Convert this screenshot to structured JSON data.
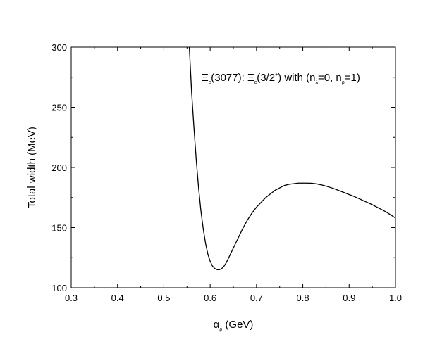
{
  "chart_data": {
    "type": "line",
    "title": "",
    "xlabel": {
      "symbol": "α",
      "subscript": "ρ",
      "unit": " (GeV)"
    },
    "ylabel": "Total width (MeV)",
    "xlim": [
      0.3,
      1.0
    ],
    "ylim": [
      100,
      300
    ],
    "grid": false,
    "x_ticks": [
      0.3,
      0.4,
      0.5,
      0.6,
      0.7,
      0.8,
      0.9,
      1.0
    ],
    "x_tick_labels": [
      "0.3",
      "0.4",
      "0.5",
      "0.6",
      "0.7",
      "0.8",
      "0.9",
      "1.0"
    ],
    "y_ticks": [
      100,
      150,
      200,
      250,
      300
    ],
    "y_tick_labels": [
      "100",
      "150",
      "200",
      "250",
      "300"
    ],
    "annotation": {
      "p1": "Ξ",
      "s1": "c",
      "p2": "(3077): ",
      "p3": "Ξ",
      "s2": "c",
      "p4": "(3/2",
      "sup": "+",
      "p5": ") with (n",
      "s3": "λ",
      "p6": "=0, n",
      "s4": "ρ",
      "p7": "=1)"
    },
    "series": [
      {
        "color": "#000000",
        "x": [
          0.555,
          0.56,
          0.565,
          0.57,
          0.575,
          0.58,
          0.585,
          0.59,
          0.595,
          0.6,
          0.605,
          0.61,
          0.615,
          0.62,
          0.625,
          0.63,
          0.635,
          0.64,
          0.65,
          0.66,
          0.67,
          0.68,
          0.69,
          0.7,
          0.71,
          0.72,
          0.73,
          0.74,
          0.75,
          0.76,
          0.77,
          0.78,
          0.79,
          0.8,
          0.81,
          0.82,
          0.83,
          0.84,
          0.85,
          0.86,
          0.87,
          0.88,
          0.89,
          0.9,
          0.91,
          0.92,
          0.93,
          0.94,
          0.95,
          0.96,
          0.97,
          0.98,
          0.99,
          1.0
        ],
        "y": [
          300,
          262,
          233,
          206,
          183,
          164,
          149,
          137,
          128,
          122,
          118,
          116,
          115,
          115,
          116,
          118,
          121,
          125,
          133,
          141,
          149,
          156,
          162,
          167,
          171,
          175,
          178,
          181,
          183,
          185,
          186,
          186.5,
          187,
          187,
          187,
          186.8,
          186.3,
          185.5,
          184.5,
          183.3,
          182,
          180.5,
          179,
          177.5,
          176,
          174.3,
          172.5,
          170.8,
          169,
          167,
          165,
          163,
          160.5,
          158
        ]
      }
    ]
  }
}
